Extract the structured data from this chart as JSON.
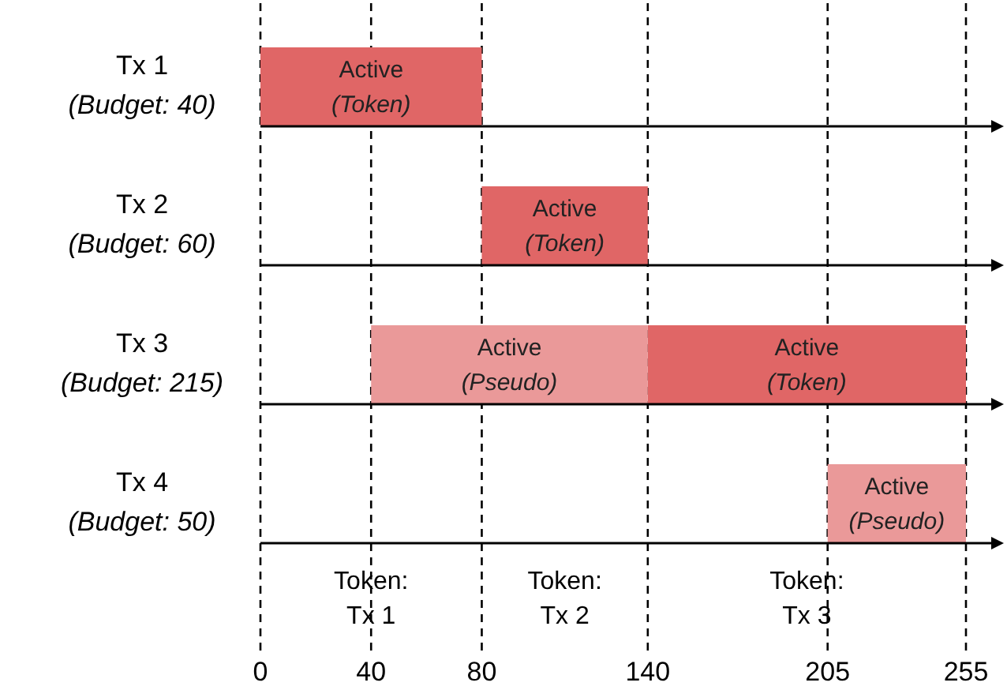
{
  "chart_data": {
    "type": "bar",
    "orientation": "horizontal",
    "categories": [
      "Tx 1\n(Budget: 40)",
      "Tx 2\n(Budget: 60)",
      "Tx 3\n(Budget: 215)",
      "Tx 4\n(Budget: 50)"
    ],
    "series": [
      {
        "color": "#e06666",
        "values": [
          80,
          60,
          115,
          null
        ],
        "base": [
          0,
          80,
          140,
          null
        ],
        "value_labels": [
          "Active\n(Token)",
          "Active\n(Token)",
          "Active\n(Token)",
          null
        ]
      },
      {
        "color": "#ea9999",
        "values": [
          null,
          null,
          100,
          50
        ],
        "base": [
          null,
          null,
          40,
          205
        ],
        "value_labels": [
          null,
          null,
          "Active\n(Pseudo)",
          "Active\n(Pseudo)"
        ]
      }
    ],
    "xlim": [
      0,
      255
    ],
    "xticks": [
      0,
      40,
      80,
      140,
      205,
      255
    ],
    "grid": "x",
    "annotations": [
      "Token:\nTx 1",
      "Token:\nTx 2",
      "Token:\nTx 3"
    ]
  }
}
